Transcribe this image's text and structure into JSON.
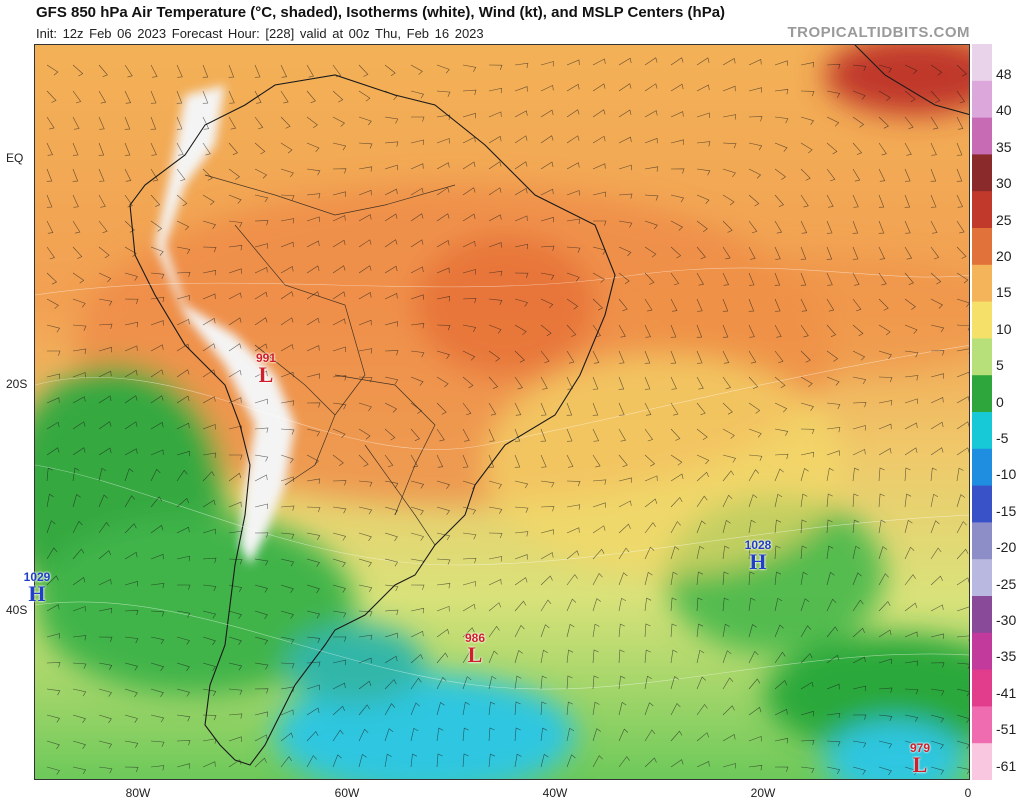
{
  "header": {
    "title": "GFS 850 hPa Air Temperature (°C, shaded), Isotherms (white), Wind (kt), and MSLP Centers (hPa)",
    "subtitle": "Init: 12z Feb 06 2023   Forecast Hour: [228]   valid at 00z Thu, Feb 16 2023",
    "credit": "TROPICALTIDBITS.COM"
  },
  "axes": {
    "lat_labels": [
      "EQ",
      "20S",
      "40S"
    ],
    "lon_labels": [
      "80W",
      "60W",
      "40W",
      "20W",
      "0"
    ]
  },
  "colorbar": {
    "labels": [
      "48",
      "40",
      "35",
      "30",
      "25",
      "20",
      "15",
      "10",
      "5",
      "0",
      "-5",
      "-10",
      "-15",
      "-20",
      "-25",
      "-30",
      "-35",
      "-41",
      "-51",
      "-61"
    ],
    "colors": [
      "#e8d3ea",
      "#dca8dc",
      "#c76bb5",
      "#8a2a2a",
      "#c0392b",
      "#e1733a",
      "#f4b55a",
      "#f5e06a",
      "#b8e07a",
      "#2ea63c",
      "#17c9d6",
      "#1f8de0",
      "#3a52c8",
      "#8d8dc8",
      "#b8b8e0",
      "#8a4a9a",
      "#c23a9b",
      "#e23c8c",
      "#f06cb0",
      "#f9c7e0"
    ]
  },
  "pressure_centers": [
    {
      "type": "L",
      "value": "991"
    },
    {
      "type": "H",
      "value": "1029"
    },
    {
      "type": "L",
      "value": "986"
    },
    {
      "type": "H",
      "value": "1028"
    },
    {
      "type": "L",
      "value": "979"
    }
  ]
}
